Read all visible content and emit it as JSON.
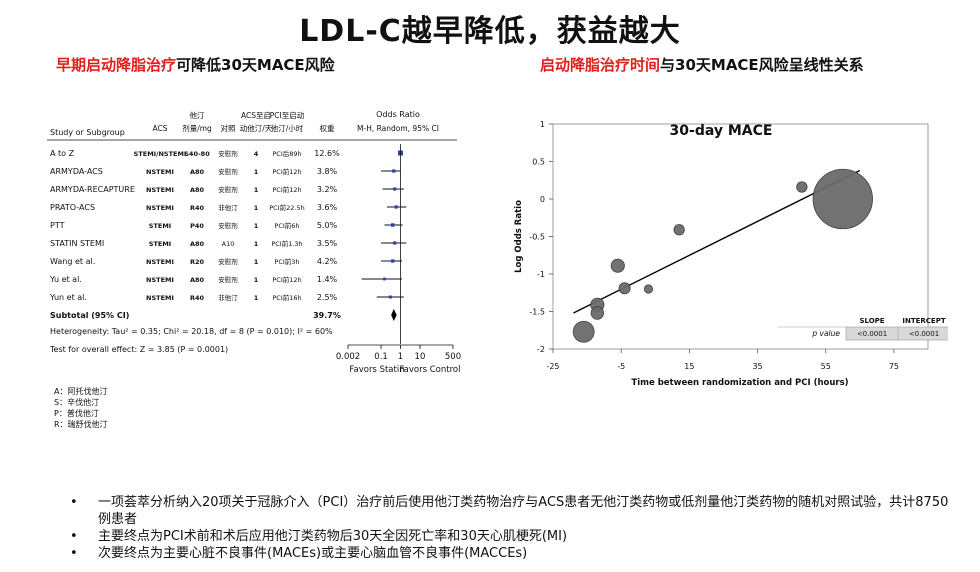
{
  "title": "LDL-C越早降低，获益越大",
  "left_subtitle": {
    "red": "早期启动降脂治疗",
    "black": "可降低30天MACE风险"
  },
  "right_subtitle": {
    "red": "启动降脂治疗时间",
    "black": "与30天MACE风险呈线性关系"
  },
  "chart_data": [
    {
      "type": "table",
      "columns": [
        "Study or Subgroup",
        "ACS",
        "他汀剂量/mg",
        "对照",
        "ACS至启动他汀/天",
        "PCI至启动他汀/小时",
        "权重",
        "Odds Ratio M-H, Random, 95% CI"
      ],
      "header_lines": {
        "study": "Study or Subgroup",
        "acs": "ACS",
        "dose": [
          "他汀",
          "剂量/mg"
        ],
        "control": "对照",
        "acs_days": [
          "ACS至启",
          "动他汀/天"
        ],
        "pci_hours": [
          "PCI至启动",
          "他汀/小时"
        ],
        "weight": "权重",
        "or": [
          "Odds Ratio",
          "M-H, Random, 95% CI"
        ]
      },
      "rows": [
        {
          "study": "A to Z",
          "acs": "STEMI/NSTEMI",
          "dose": "S40-80",
          "control": "安慰剂",
          "acs_days": "4",
          "pci_hours": "PCI后89h",
          "weight": "12.6%",
          "or": 1.0,
          "lo": 0.92,
          "hi": 1.1
        },
        {
          "study": "ARMYDA-ACS",
          "acs": "NSTEMI",
          "dose": "A80",
          "control": "安慰剂",
          "acs_days": "1",
          "pci_hours": "PCI前12h",
          "weight": "3.8%",
          "or": 0.45,
          "lo": 0.1,
          "hi": 1.0
        },
        {
          "study": "ARMYDA-RECAPTURE",
          "acs": "NSTEMI",
          "dose": "A80",
          "control": "安慰剂",
          "acs_days": "1",
          "pci_hours": "PCI前12h",
          "weight": "3.2%",
          "or": 0.5,
          "lo": 0.12,
          "hi": 1.5
        },
        {
          "study": "PRATO-ACS",
          "acs": "NSTEMI",
          "dose": "R40",
          "control": "非他汀",
          "acs_days": "1",
          "pci_hours": "PCI前22.5h",
          "weight": "3.6%",
          "or": 0.6,
          "lo": 0.2,
          "hi": 2.0
        },
        {
          "study": "PTT",
          "acs": "STEMI",
          "dose": "P40",
          "control": "安慰剂",
          "acs_days": "1",
          "pci_hours": "PCI前6h",
          "weight": "5.0%",
          "or": 0.4,
          "lo": 0.15,
          "hi": 1.3
        },
        {
          "study": "STATIN STEMI",
          "acs": "STEMI",
          "dose": "A80",
          "control": "A10",
          "acs_days": "1",
          "pci_hours": "PCI前1.3h",
          "weight": "3.5%",
          "or": 0.5,
          "lo": 0.1,
          "hi": 2.0
        },
        {
          "study": "Wang et al.",
          "acs": "NSTEMI",
          "dose": "R20",
          "control": "安慰剂",
          "acs_days": "1",
          "pci_hours": "PCI前3h",
          "weight": "4.2%",
          "or": 0.4,
          "lo": 0.1,
          "hi": 1.2
        },
        {
          "study": "Yu et al.",
          "acs": "NSTEMI",
          "dose": "A80",
          "control": "安慰剂",
          "acs_days": "1",
          "pci_hours": "PCI前12h",
          "weight": "1.4%",
          "or": 0.15,
          "lo": 0.01,
          "hi": 1.2
        },
        {
          "study": "Yun et al.",
          "acs": "NSTEMI",
          "dose": "R40",
          "control": "非他汀",
          "acs_days": "1",
          "pci_hours": "PCI前16h",
          "weight": "2.5%",
          "or": 0.3,
          "lo": 0.06,
          "hi": 1.5
        }
      ],
      "subtotal": {
        "label": "Subtotal (95% CI)",
        "weight": "39.7%",
        "or": 0.45,
        "lo": 0.33,
        "hi": 0.64
      },
      "heterogeneity": "Heterogeneity: Tau² = 0.35; Chi² = 20.18, df = 8 (P = 0.010); I² = 60%",
      "overall_effect": "Test for overall effect: Z = 3.85 (P = 0.0001)",
      "x_ticks": [
        0.002,
        0.1,
        1,
        10,
        500
      ],
      "x_tick_labels": [
        "0.002",
        "0.1",
        "1",
        "10",
        "500"
      ],
      "xlim": [
        0.002,
        500
      ],
      "x_scale": "log",
      "favors": [
        "Favors Statin",
        "Favors Control"
      ]
    },
    {
      "type": "scatter",
      "title": "30-day MACE",
      "xlabel": "Time between randomization and PCI (hours)",
      "ylabel": "Log Odds Ratio",
      "x_ticks": [
        -25,
        -5,
        15,
        35,
        55,
        75
      ],
      "y_ticks": [
        1,
        0.5,
        0,
        -0.5,
        -1,
        -1.5,
        -2
      ],
      "y_tick_labels": [
        "1",
        "0.5",
        "0",
        "-0.5",
        "-1",
        "-1.5",
        "-2"
      ],
      "xlim": [
        -25,
        85
      ],
      "ylim": [
        -2,
        1
      ],
      "points": [
        {
          "x": -16,
          "y": -1.77,
          "size": 3.0
        },
        {
          "x": -12,
          "y": -1.41,
          "size": 1.9
        },
        {
          "x": -12,
          "y": -1.52,
          "size": 1.8
        },
        {
          "x": -6,
          "y": -0.89,
          "size": 1.9
        },
        {
          "x": -4,
          "y": -1.19,
          "size": 1.6
        },
        {
          "x": 3,
          "y": -1.2,
          "size": 1.2
        },
        {
          "x": 12,
          "y": -0.41,
          "size": 1.5
        },
        {
          "x": 48,
          "y": 0.16,
          "size": 1.5
        },
        {
          "x": 60,
          "y": 0.0,
          "size": 8.5
        }
      ],
      "fit_line": [
        {
          "x": -19,
          "y": -1.52
        },
        {
          "x": 65,
          "y": 0.38
        }
      ],
      "table": {
        "headers": [
          "",
          "SLOPE",
          "INTERCEPT"
        ],
        "row": [
          "p value",
          "<0.0001",
          "<0.0001"
        ]
      }
    }
  ],
  "statin_legend": [
    "A：阿托伐他汀",
    "S：辛伐他汀",
    "P：普伐他汀",
    "R：瑞舒伐他汀"
  ],
  "bullets": [
    "一项荟萃分析纳入20项关于冠脉介入（PCI）治疗前后使用他汀类药物治疗与ACS患者无他汀类药物或低剂量他汀类药物的随机对照试验，共计8750例患者",
    "主要终点为PCI术前和术后应用他汀类药物后30天全因死亡率和30天心肌梗死(MI)",
    "次要终点为主要心脏不良事件(MACEs)或主要心脑血管不良事件(MACCEs)"
  ]
}
